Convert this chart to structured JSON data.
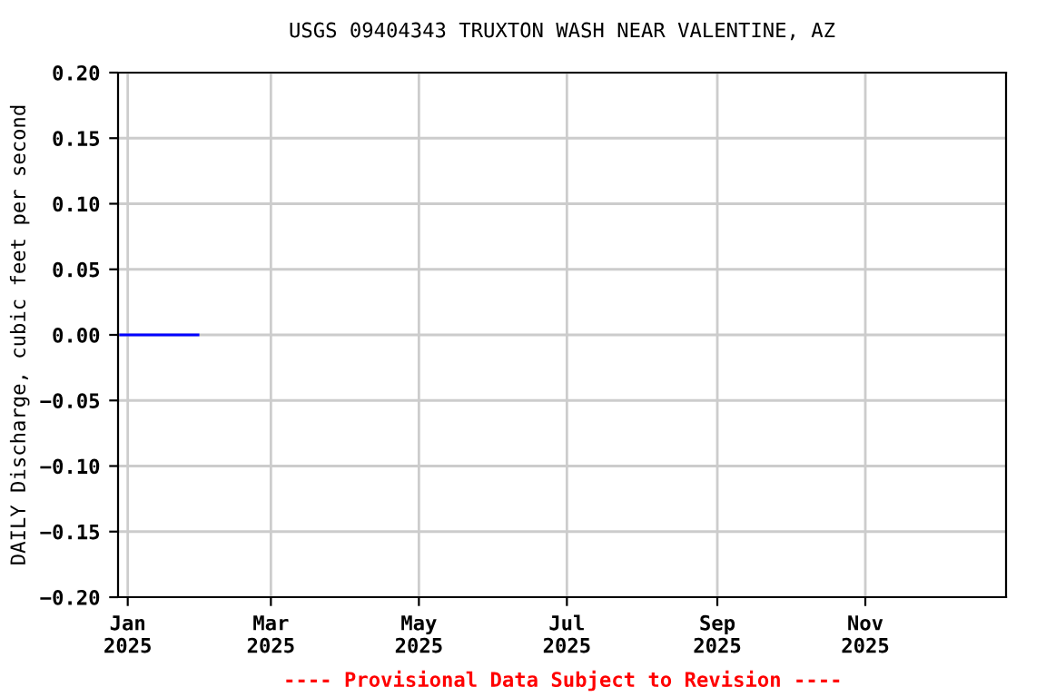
{
  "chart_data": {
    "type": "line",
    "title": "USGS 09404343 TRUXTON WASH NEAR VALENTINE, AZ",
    "ylabel": "DAILY Discharge, cubic feet per second",
    "annotations": [
      "---- Provisional Data Subject to Revision ----"
    ],
    "x": [
      "2024-12-29",
      "2025-01-15",
      "2025-01-30"
    ],
    "series": [
      {
        "color": "#0000ff",
        "values": [
          0.0,
          0.0,
          0.0
        ]
      }
    ],
    "xlim": [
      "2024-12-28",
      "2025-12-29"
    ],
    "xticks": [
      {
        "value": "2025-01-01",
        "label": "Jan\n2025"
      },
      {
        "value": "2025-03-01",
        "label": "Mar\n2025"
      },
      {
        "value": "2025-05-01",
        "label": "May\n2025"
      },
      {
        "value": "2025-07-01",
        "label": "Jul\n2025"
      },
      {
        "value": "2025-09-01",
        "label": "Sep\n2025"
      },
      {
        "value": "2025-11-01",
        "label": "Nov\n2025"
      }
    ],
    "ylim": [
      -0.2,
      0.2
    ],
    "yticks": [
      {
        "value": -0.2,
        "label": "−0.20"
      },
      {
        "value": -0.15,
        "label": "−0.15"
      },
      {
        "value": -0.1,
        "label": "−0.10"
      },
      {
        "value": -0.05,
        "label": "−0.05"
      },
      {
        "value": 0.0,
        "label": "0.00"
      },
      {
        "value": 0.05,
        "label": "0.05"
      },
      {
        "value": 0.1,
        "label": "0.10"
      },
      {
        "value": 0.15,
        "label": "0.15"
      },
      {
        "value": 0.2,
        "label": "0.20"
      }
    ],
    "grid": true,
    "line_style": "solid"
  }
}
